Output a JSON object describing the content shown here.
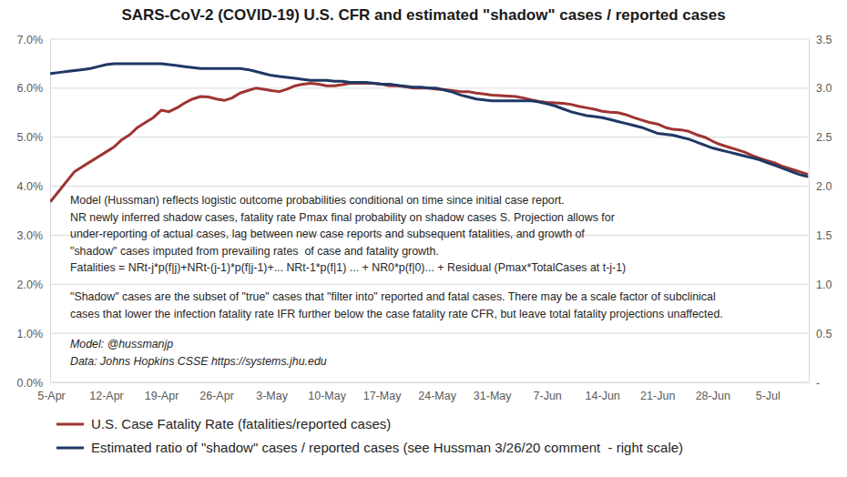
{
  "chart_data": {
    "type": "line",
    "title": "SARS-CoV-2 (COVID-19) U.S. CFR and estimated \"shadow\" cases / reported cases",
    "categories": [
      "5-Apr",
      null,
      null,
      null,
      null,
      null,
      null,
      "12-Apr",
      null,
      null,
      null,
      null,
      null,
      null,
      "19-Apr",
      null,
      null,
      null,
      null,
      null,
      null,
      "26-Apr",
      null,
      null,
      null,
      null,
      null,
      null,
      "3-May",
      null,
      null,
      null,
      null,
      null,
      null,
      "10-May",
      null,
      null,
      null,
      null,
      null,
      null,
      "17-May",
      null,
      null,
      null,
      null,
      null,
      null,
      "24-May",
      null,
      null,
      null,
      null,
      null,
      null,
      "31-May",
      null,
      null,
      null,
      null,
      null,
      null,
      "7-Jun",
      null,
      null,
      null,
      null,
      null,
      null,
      "14-Jun",
      null,
      null,
      null,
      null,
      null,
      null,
      "21-Jun",
      null,
      null,
      null,
      null,
      null,
      null,
      "28-Jun",
      null,
      null,
      null,
      null,
      null,
      null,
      "5-Jul",
      null,
      null,
      null,
      null,
      null
    ],
    "series": [
      {
        "name": "U.S. Case Fatality Rate (fatalities/reported cases)",
        "color": "#9e3432",
        "values": [
          3.7,
          3.9,
          4.1,
          4.3,
          4.4,
          4.5,
          4.6,
          4.7,
          4.8,
          4.95,
          5.05,
          5.2,
          5.3,
          5.4,
          5.55,
          5.52,
          5.6,
          5.7,
          5.78,
          5.83,
          5.82,
          5.78,
          5.75,
          5.8,
          5.9,
          5.95,
          6.0,
          5.98,
          5.95,
          5.93,
          5.98,
          6.05,
          6.08,
          6.1,
          6.08,
          6.05,
          6.05,
          6.07,
          6.1,
          6.1,
          6.1,
          6.1,
          6.08,
          6.05,
          6.05,
          6.03,
          6.0,
          6.0,
          6.0,
          5.98,
          5.97,
          5.95,
          5.93,
          5.93,
          5.9,
          5.88,
          5.86,
          5.85,
          5.84,
          5.83,
          5.8,
          5.76,
          5.73,
          5.71,
          5.7,
          5.69,
          5.67,
          5.63,
          5.6,
          5.57,
          5.53,
          5.51,
          5.5,
          5.46,
          5.4,
          5.35,
          5.3,
          5.27,
          5.2,
          5.16,
          5.15,
          5.12,
          5.05,
          5.0,
          4.92,
          4.85,
          4.8,
          4.75,
          4.7,
          4.63,
          4.57,
          4.52,
          4.47,
          4.4,
          4.35,
          4.3,
          4.25
        ]
      },
      {
        "name": "Estimated ratio of \"shadow\" cases / reported cases (see Hussman 3/26/20 comment  - right scale)",
        "color": "#1f3864",
        "axis": "y2",
        "values": [
          3.15,
          3.16,
          3.17,
          3.18,
          3.19,
          3.2,
          3.22,
          3.24,
          3.25,
          3.25,
          3.25,
          3.25,
          3.25,
          3.25,
          3.25,
          3.24,
          3.23,
          3.22,
          3.21,
          3.2,
          3.2,
          3.2,
          3.2,
          3.2,
          3.2,
          3.19,
          3.17,
          3.15,
          3.13,
          3.12,
          3.11,
          3.1,
          3.09,
          3.08,
          3.08,
          3.08,
          3.07,
          3.07,
          3.06,
          3.06,
          3.06,
          3.05,
          3.04,
          3.04,
          3.03,
          3.02,
          3.01,
          3.01,
          3.0,
          3.0,
          2.98,
          2.96,
          2.93,
          2.91,
          2.89,
          2.88,
          2.87,
          2.87,
          2.87,
          2.87,
          2.87,
          2.87,
          2.86,
          2.84,
          2.82,
          2.79,
          2.76,
          2.74,
          2.72,
          2.71,
          2.7,
          2.68,
          2.66,
          2.64,
          2.62,
          2.6,
          2.57,
          2.54,
          2.53,
          2.52,
          2.5,
          2.48,
          2.45,
          2.42,
          2.39,
          2.37,
          2.35,
          2.33,
          2.31,
          2.29,
          2.27,
          2.24,
          2.21,
          2.18,
          2.15,
          2.12,
          2.1
        ]
      }
    ],
    "ylim": [
      0,
      7
    ],
    "yticks": [
      {
        "value": 0,
        "label": "0.0%"
      },
      {
        "value": 1,
        "label": "1.0%"
      },
      {
        "value": 2,
        "label": "2.0%"
      },
      {
        "value": 3,
        "label": "3.0%"
      },
      {
        "value": 4,
        "label": "4.0%"
      },
      {
        "value": 5,
        "label": "5.0%"
      },
      {
        "value": 6,
        "label": "6.0%"
      },
      {
        "value": 7,
        "label": "7.0%"
      }
    ],
    "y2lim": [
      0,
      3.5
    ],
    "y2ticks": [
      {
        "value": 0,
        "label": "-"
      },
      0.5,
      {
        "value": 1,
        "label": "1.0"
      },
      1.5,
      {
        "value": 2,
        "label": "2.0"
      },
      2.5,
      {
        "value": 3,
        "label": "3.0"
      },
      3.5
    ],
    "grid": true,
    "legend": "bottom",
    "annotations": [
      [
        "Model (Hussman) reflects logistic outcome probabilities conditional on time since initial case report.",
        "NR newly inferred shadow cases, fatality rate Pmax final probability on shadow cases S. Projection allows for",
        "under-reporting of actual cases, lag between new case reports and subsequent fatalities, and growth of",
        "\"shadow\" cases imputed from prevailing rates  of case and fatality growth.",
        "Fatalities = NRt-j*p(f|j)+NRt-(j-1)*p(f|j-1)+... NRt-1*p(f|1) ... + NR0*p(f|0)... + Residual (Pmax*TotalCases at t-j-1)"
      ],
      [
        "\"Shadow\" cases are the subset of \"true\" cases that \"filter into\" reported and fatal cases. There may be a scale factor of subclinical",
        "cases that lower the infection fatality rate IFR further below the case fatality rate CFR, but leave total fatality projections unaffected."
      ],
      [
        "Model: @hussmanjp",
        "Data: Johns Hopkins CSSE https://systems.jhu.edu"
      ]
    ]
  }
}
